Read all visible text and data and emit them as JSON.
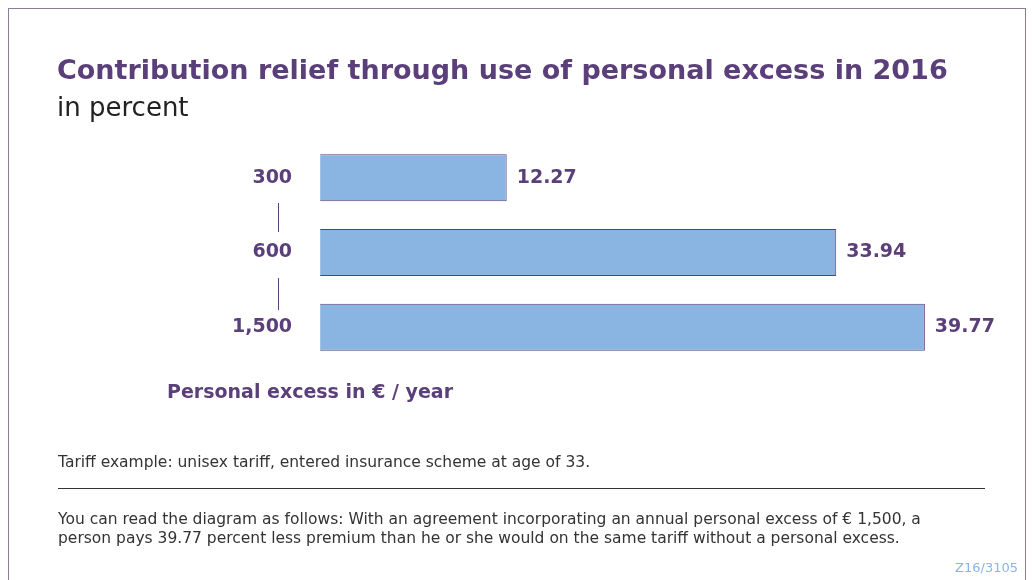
{
  "chart_data": {
    "type": "bar",
    "orientation": "horizontal",
    "title": "Contribution relief through use of personal excess in 2016",
    "subtitle": "in percent",
    "ylabel": "Personal excess in € / year",
    "categories": [
      "300",
      "600",
      "1,500"
    ],
    "values": [
      12.27,
      33.94,
      39.77
    ],
    "color": "#8ab4e2",
    "data_labels": true,
    "annotations": [
      "Tariff example: unisex tariff, entered insurance scheme at age of 33.",
      "You can read the diagram as follows: With an agreement incorporating an annual personal excess of € 1,500, a person pays 39.77 percent less premium than he or she would on the same tariff without a personal excess.",
      "Z16/3105"
    ]
  }
}
